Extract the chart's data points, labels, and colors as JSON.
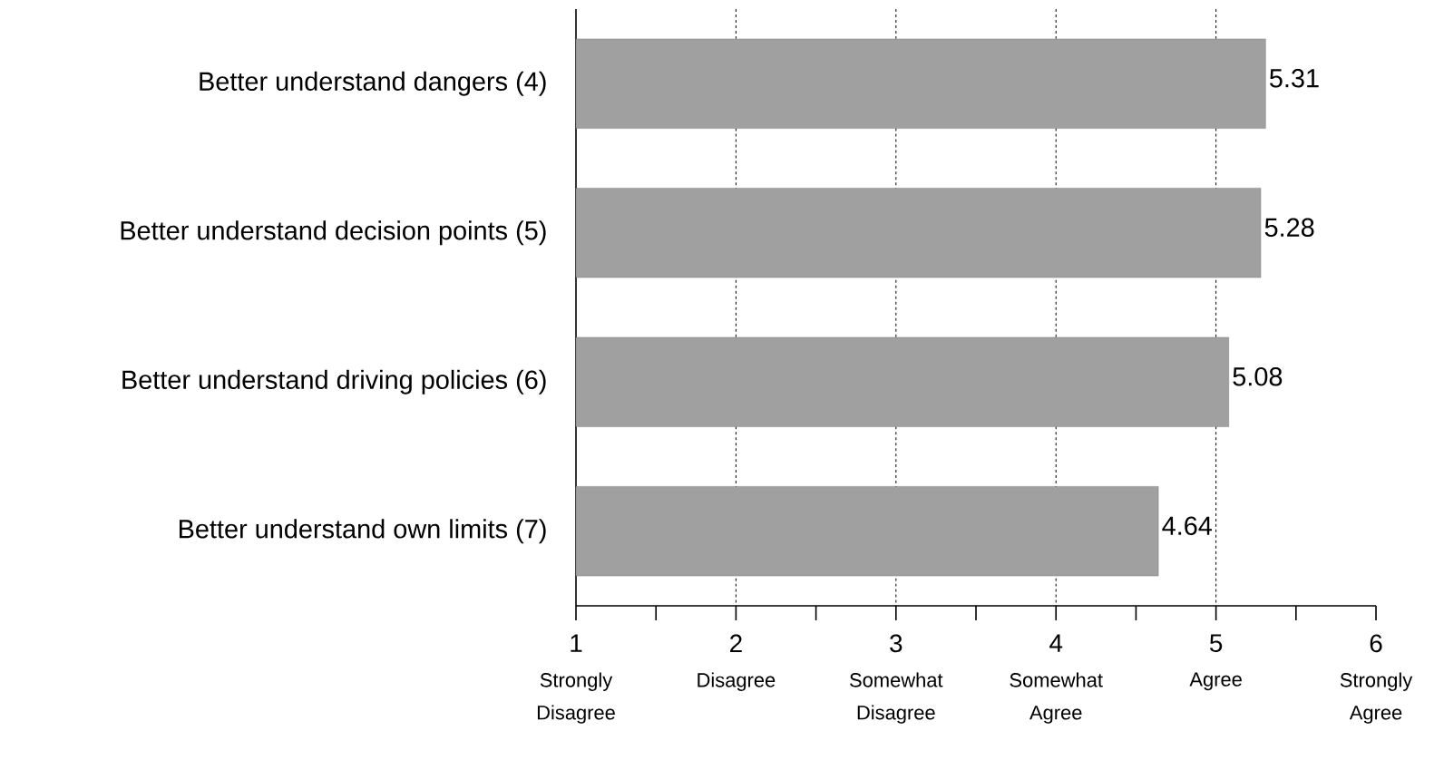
{
  "chart_data": {
    "type": "bar",
    "orientation": "horizontal",
    "categories": [
      "Better understand dangers (4)",
      "Better understand decision points (5)",
      "Better understand driving policies (6)",
      "Better understand own limits (7)"
    ],
    "values": [
      5.31,
      5.28,
      5.08,
      4.64
    ],
    "color": "#a0a0a0",
    "xlim": [
      1,
      6
    ],
    "xticks": [
      1,
      {
        "value": 1.5,
        "label": null
      },
      2,
      {
        "value": 2.5,
        "label": null
      },
      3,
      {
        "value": 3.5,
        "label": null
      },
      4,
      {
        "value": 4.5,
        "label": null
      },
      5,
      {
        "value": 5.5,
        "label": null
      },
      6
    ],
    "annotations": [
      "Strongly Disagree",
      "Disagree",
      "Somewhat Disagree",
      "Somewhat Agree",
      "Agree",
      "Strongly Agree"
    ],
    "grid": "x",
    "data_labels": true
  }
}
